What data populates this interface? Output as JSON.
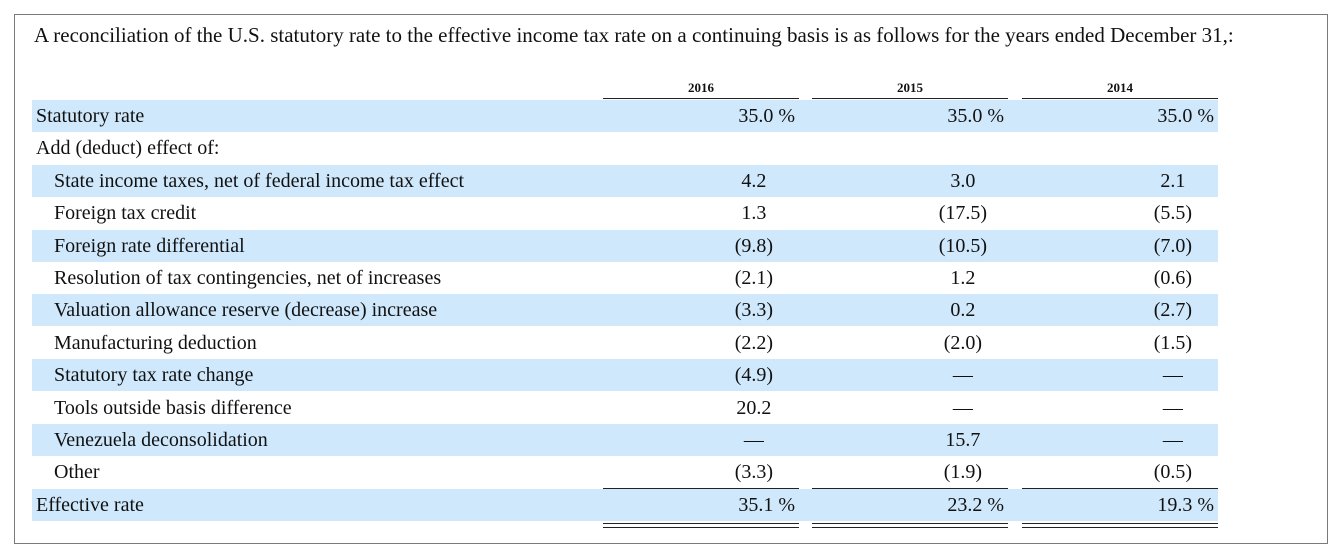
{
  "caption": "A reconciliation of the U.S. statutory rate to the effective income tax rate on a continuing basis is as follows for the years ended December 31,:",
  "years": [
    "2016",
    "2015",
    "2014"
  ],
  "rows": [
    {
      "label": "Statutory rate",
      "indent": 0,
      "shaded": true,
      "values": [
        "35.0 %",
        "35.0 %",
        "35.0 %"
      ]
    },
    {
      "label": "Add (deduct) effect of:",
      "indent": 0,
      "shaded": false,
      "values": [
        "",
        "",
        ""
      ]
    },
    {
      "label": "State income taxes, net of federal income tax effect",
      "indent": 1,
      "shaded": true,
      "values": [
        "4.2",
        "3.0",
        "2.1"
      ]
    },
    {
      "label": "Foreign tax credit",
      "indent": 1,
      "shaded": false,
      "values": [
        "1.3",
        "(17.5)",
        "(5.5)"
      ]
    },
    {
      "label": "Foreign rate differential",
      "indent": 1,
      "shaded": true,
      "values": [
        "(9.8)",
        "(10.5)",
        "(7.0)"
      ]
    },
    {
      "label": "Resolution of tax contingencies, net of increases",
      "indent": 1,
      "shaded": false,
      "values": [
        "(2.1)",
        "1.2",
        "(0.6)"
      ]
    },
    {
      "label": "Valuation allowance reserve (decrease) increase",
      "indent": 1,
      "shaded": true,
      "values": [
        "(3.3)",
        "0.2",
        "(2.7)"
      ]
    },
    {
      "label": "Manufacturing deduction",
      "indent": 1,
      "shaded": false,
      "values": [
        "(2.2)",
        "(2.0)",
        "(1.5)"
      ]
    },
    {
      "label": "Statutory tax rate change",
      "indent": 1,
      "shaded": true,
      "values": [
        "(4.9)",
        "—",
        "—"
      ]
    },
    {
      "label": "Tools outside basis difference",
      "indent": 1,
      "shaded": false,
      "values": [
        "20.2",
        "—",
        "—"
      ]
    },
    {
      "label": "Venezuela deconsolidation",
      "indent": 1,
      "shaded": true,
      "values": [
        "—",
        "15.7",
        "—"
      ]
    },
    {
      "label": "Other",
      "indent": 1,
      "shaded": false,
      "values": [
        "(3.3)",
        "(1.9)",
        "(0.5)"
      ]
    },
    {
      "label": "Effective rate",
      "indent": 0,
      "shaded": true,
      "values": [
        "35.1 %",
        "23.2 %",
        "19.3 %"
      ]
    }
  ]
}
